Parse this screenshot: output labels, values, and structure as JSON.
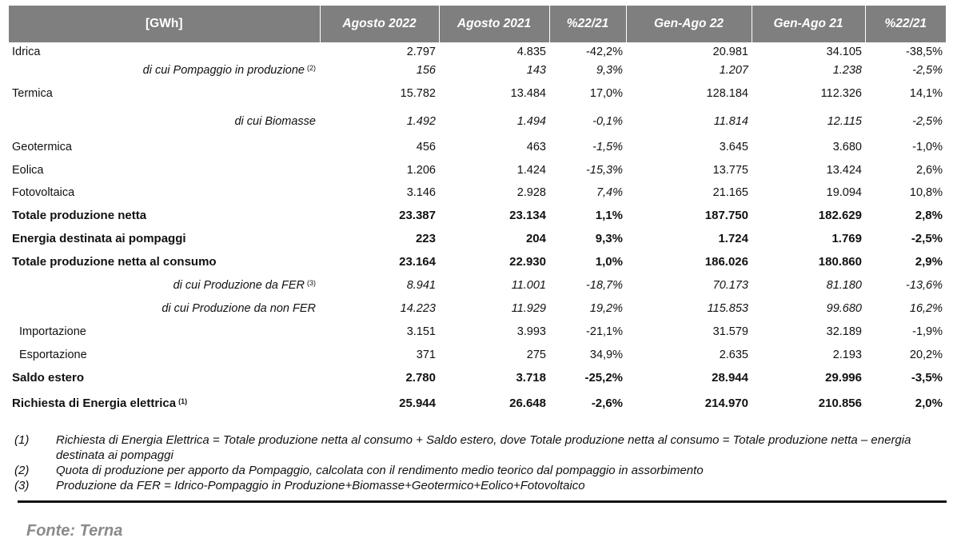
{
  "header": {
    "unit": "[GWh]",
    "col1": "Agosto 2022",
    "col2": "Agosto 2021",
    "col3": "%22/21",
    "col4": "Gen-Ago 22",
    "col5": "Gen-Ago 21",
    "col6": "%22/21"
  },
  "rows": [
    {
      "label": "Idrica",
      "sup": "",
      "v": [
        "2.797",
        "4.835",
        "-42,2%",
        "20.981",
        "34.105",
        "-38,5%"
      ]
    },
    {
      "label": "di cui Pompaggio in produzione",
      "sup": "(2)",
      "v": [
        "156",
        "143",
        "9,3%",
        "1.207",
        "1.238",
        "-2,5%"
      ]
    },
    {
      "label": "Termica",
      "sup": "",
      "v": [
        "15.782",
        "13.484",
        "17,0%",
        "128.184",
        "112.326",
        "14,1%"
      ]
    },
    {
      "label": "di cui Biomasse",
      "sup": "",
      "v": [
        "1.492",
        "1.494",
        "-0,1%",
        "11.814",
        "12.115",
        "-2,5%"
      ]
    },
    {
      "label": "Geotermica",
      "sup": "",
      "v": [
        "456",
        "463",
        "-1,5%",
        "3.645",
        "3.680",
        "-1,0%"
      ]
    },
    {
      "label": "Eolica",
      "sup": "",
      "v": [
        "1.206",
        "1.424",
        "-15,3%",
        "13.775",
        "13.424",
        "2,6%"
      ]
    },
    {
      "label": "Fotovoltaica",
      "sup": "",
      "v": [
        "3.146",
        "2.928",
        "7,4%",
        "21.165",
        "19.094",
        "10,8%"
      ]
    },
    {
      "label": "Totale produzione netta",
      "sup": "",
      "v": [
        "23.387",
        "23.134",
        "1,1%",
        "187.750",
        "182.629",
        "2,8%"
      ]
    },
    {
      "label": "Energia destinata ai pompaggi",
      "sup": "",
      "v": [
        "223",
        "204",
        "9,3%",
        "1.724",
        "1.769",
        "-2,5%"
      ]
    },
    {
      "label": "Totale produzione netta al consumo",
      "sup": "",
      "v": [
        "23.164",
        "22.930",
        "1,0%",
        "186.026",
        "180.860",
        "2,9%"
      ]
    },
    {
      "label": "di cui Produzione da FER",
      "sup": "(3)",
      "v": [
        "8.941",
        "11.001",
        "-18,7%",
        "70.173",
        "81.180",
        "-13,6%"
      ]
    },
    {
      "label": "di cui Produzione da non FER",
      "sup": "",
      "v": [
        "14.223",
        "11.929",
        "19,2%",
        "115.853",
        "99.680",
        "16,2%"
      ]
    },
    {
      "label": "Importazione",
      "sup": "",
      "v": [
        "3.151",
        "3.993",
        "-21,1%",
        "31.579",
        "32.189",
        "-1,9%"
      ]
    },
    {
      "label": "Esportazione",
      "sup": "",
      "v": [
        "371",
        "275",
        "34,9%",
        "2.635",
        "2.193",
        "20,2%"
      ]
    },
    {
      "label": "Saldo estero",
      "sup": "",
      "v": [
        "2.780",
        "3.718",
        "-25,2%",
        "28.944",
        "29.996",
        "-3,5%"
      ]
    },
    {
      "label": "Richiesta di Energia elettrica",
      "sup": "(1)",
      "v": [
        "25.944",
        "26.648",
        "-2,6%",
        "214.970",
        "210.856",
        "2,0%"
      ]
    }
  ],
  "notes": [
    {
      "num": "(1)",
      "text": "Richiesta di Energia Elettrica = Totale produzione netta al consumo + Saldo estero, dove Totale produzione netta al consumo = Totale produzione netta – energia destinata ai pompaggi"
    },
    {
      "num": "(2)",
      "text": "Quota di produzione per apporto da Pompaggio, calcolata con il rendimento medio teorico dal pompaggio in assorbimento"
    },
    {
      "num": "(3)",
      "text": "Produzione da FER = Idrico-Pompaggio in Produzione+Biomasse+Geotermico+Eolico+Fotovoltaico"
    }
  ],
  "source": "Fonte: Terna"
}
